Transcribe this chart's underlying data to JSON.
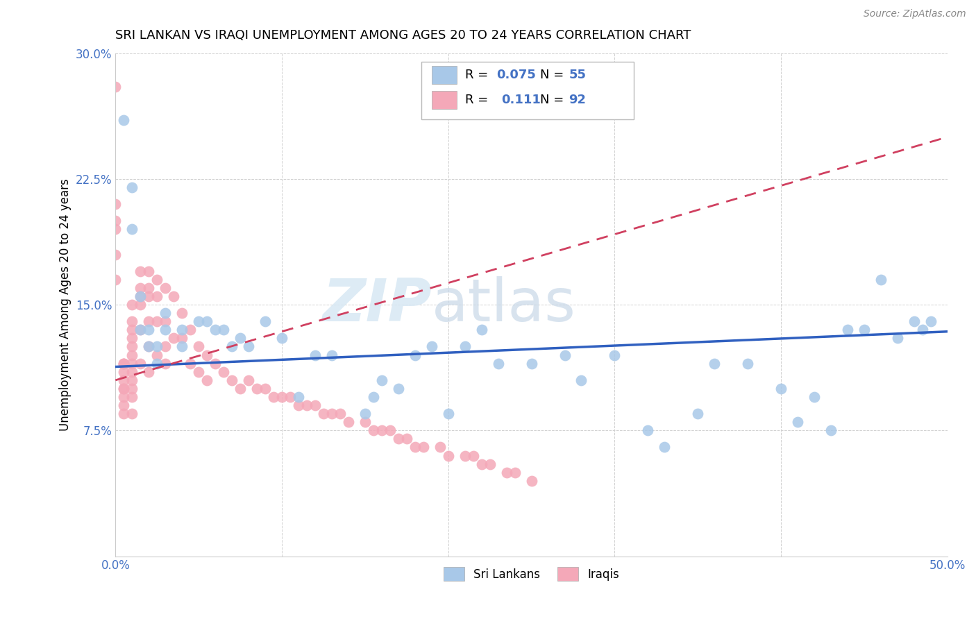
{
  "title": "SRI LANKAN VS IRAQI UNEMPLOYMENT AMONG AGES 20 TO 24 YEARS CORRELATION CHART",
  "source": "Source: ZipAtlas.com",
  "ylabel": "Unemployment Among Ages 20 to 24 years",
  "xlim": [
    0.0,
    0.5
  ],
  "ylim": [
    0.0,
    0.3
  ],
  "xticks": [
    0.0,
    0.1,
    0.2,
    0.3,
    0.4,
    0.5
  ],
  "xticklabels": [
    "0.0%",
    "",
    "",
    "",
    "",
    "50.0%"
  ],
  "yticks": [
    0.0,
    0.075,
    0.15,
    0.225,
    0.3
  ],
  "yticklabels": [
    "",
    "7.5%",
    "15.0%",
    "22.5%",
    "30.0%"
  ],
  "sri_lanka_R": "0.075",
  "sri_lanka_N": "55",
  "iraq_R": "0.111",
  "iraq_N": "92",
  "sri_lanka_color": "#a8c8e8",
  "iraq_color": "#f4a8b8",
  "sri_lanka_line_color": "#3060c0",
  "iraq_line_color": "#d04060",
  "watermark_zip": "ZIP",
  "watermark_atlas": "atlas",
  "sri_lanka_x": [
    0.005,
    0.01,
    0.01,
    0.015,
    0.015,
    0.02,
    0.02,
    0.025,
    0.025,
    0.03,
    0.03,
    0.04,
    0.04,
    0.05,
    0.055,
    0.06,
    0.065,
    0.07,
    0.075,
    0.08,
    0.09,
    0.1,
    0.11,
    0.12,
    0.13,
    0.15,
    0.155,
    0.16,
    0.17,
    0.18,
    0.19,
    0.2,
    0.21,
    0.22,
    0.23,
    0.25,
    0.27,
    0.28,
    0.3,
    0.32,
    0.33,
    0.35,
    0.36,
    0.38,
    0.4,
    0.41,
    0.42,
    0.43,
    0.44,
    0.45,
    0.46,
    0.47,
    0.48,
    0.485,
    0.49
  ],
  "sri_lanka_y": [
    0.26,
    0.22,
    0.195,
    0.155,
    0.135,
    0.135,
    0.125,
    0.125,
    0.115,
    0.145,
    0.135,
    0.135,
    0.125,
    0.14,
    0.14,
    0.135,
    0.135,
    0.125,
    0.13,
    0.125,
    0.14,
    0.13,
    0.095,
    0.12,
    0.12,
    0.085,
    0.095,
    0.105,
    0.1,
    0.12,
    0.125,
    0.085,
    0.125,
    0.135,
    0.115,
    0.115,
    0.12,
    0.105,
    0.12,
    0.075,
    0.065,
    0.085,
    0.115,
    0.115,
    0.1,
    0.08,
    0.095,
    0.075,
    0.135,
    0.135,
    0.165,
    0.13,
    0.14,
    0.135,
    0.14
  ],
  "iraq_x": [
    0.0,
    0.0,
    0.0,
    0.0,
    0.0,
    0.0,
    0.005,
    0.005,
    0.005,
    0.005,
    0.005,
    0.005,
    0.005,
    0.005,
    0.005,
    0.005,
    0.01,
    0.01,
    0.01,
    0.01,
    0.01,
    0.01,
    0.01,
    0.01,
    0.01,
    0.01,
    0.01,
    0.01,
    0.015,
    0.015,
    0.015,
    0.015,
    0.015,
    0.015,
    0.02,
    0.02,
    0.02,
    0.02,
    0.02,
    0.02,
    0.025,
    0.025,
    0.025,
    0.025,
    0.03,
    0.03,
    0.03,
    0.03,
    0.035,
    0.035,
    0.04,
    0.04,
    0.045,
    0.045,
    0.05,
    0.05,
    0.055,
    0.055,
    0.06,
    0.065,
    0.07,
    0.075,
    0.08,
    0.085,
    0.09,
    0.095,
    0.1,
    0.105,
    0.11,
    0.115,
    0.12,
    0.125,
    0.13,
    0.135,
    0.14,
    0.15,
    0.155,
    0.16,
    0.165,
    0.17,
    0.175,
    0.18,
    0.185,
    0.195,
    0.2,
    0.21,
    0.215,
    0.22,
    0.225,
    0.235,
    0.24,
    0.25
  ],
  "iraq_y": [
    0.28,
    0.21,
    0.2,
    0.195,
    0.18,
    0.165,
    0.115,
    0.115,
    0.115,
    0.11,
    0.105,
    0.1,
    0.1,
    0.095,
    0.09,
    0.085,
    0.15,
    0.14,
    0.135,
    0.13,
    0.125,
    0.12,
    0.115,
    0.11,
    0.105,
    0.1,
    0.095,
    0.085,
    0.17,
    0.16,
    0.155,
    0.15,
    0.135,
    0.115,
    0.17,
    0.16,
    0.155,
    0.14,
    0.125,
    0.11,
    0.165,
    0.155,
    0.14,
    0.12,
    0.16,
    0.14,
    0.125,
    0.115,
    0.155,
    0.13,
    0.145,
    0.13,
    0.135,
    0.115,
    0.125,
    0.11,
    0.12,
    0.105,
    0.115,
    0.11,
    0.105,
    0.1,
    0.105,
    0.1,
    0.1,
    0.095,
    0.095,
    0.095,
    0.09,
    0.09,
    0.09,
    0.085,
    0.085,
    0.085,
    0.08,
    0.08,
    0.075,
    0.075,
    0.075,
    0.07,
    0.07,
    0.065,
    0.065,
    0.065,
    0.06,
    0.06,
    0.06,
    0.055,
    0.055,
    0.05,
    0.05,
    0.045
  ]
}
